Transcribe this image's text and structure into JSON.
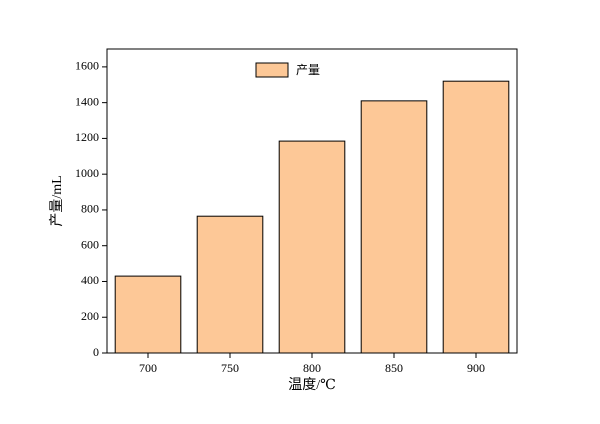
{
  "chart_data": {
    "type": "bar",
    "x_label": "温度/℃",
    "y_label": "产量/mL",
    "categories": [
      "700",
      "750",
      "800",
      "850",
      "900"
    ],
    "series": [
      {
        "name": "产量",
        "color": "#fdc897",
        "values": [
          430,
          765,
          1185,
          1410,
          1520
        ]
      }
    ],
    "ylim": [
      0,
      1700
    ],
    "yticks": [
      0,
      200,
      400,
      600,
      800,
      1000,
      1200,
      1400,
      1600
    ],
    "legend": "top-center"
  }
}
